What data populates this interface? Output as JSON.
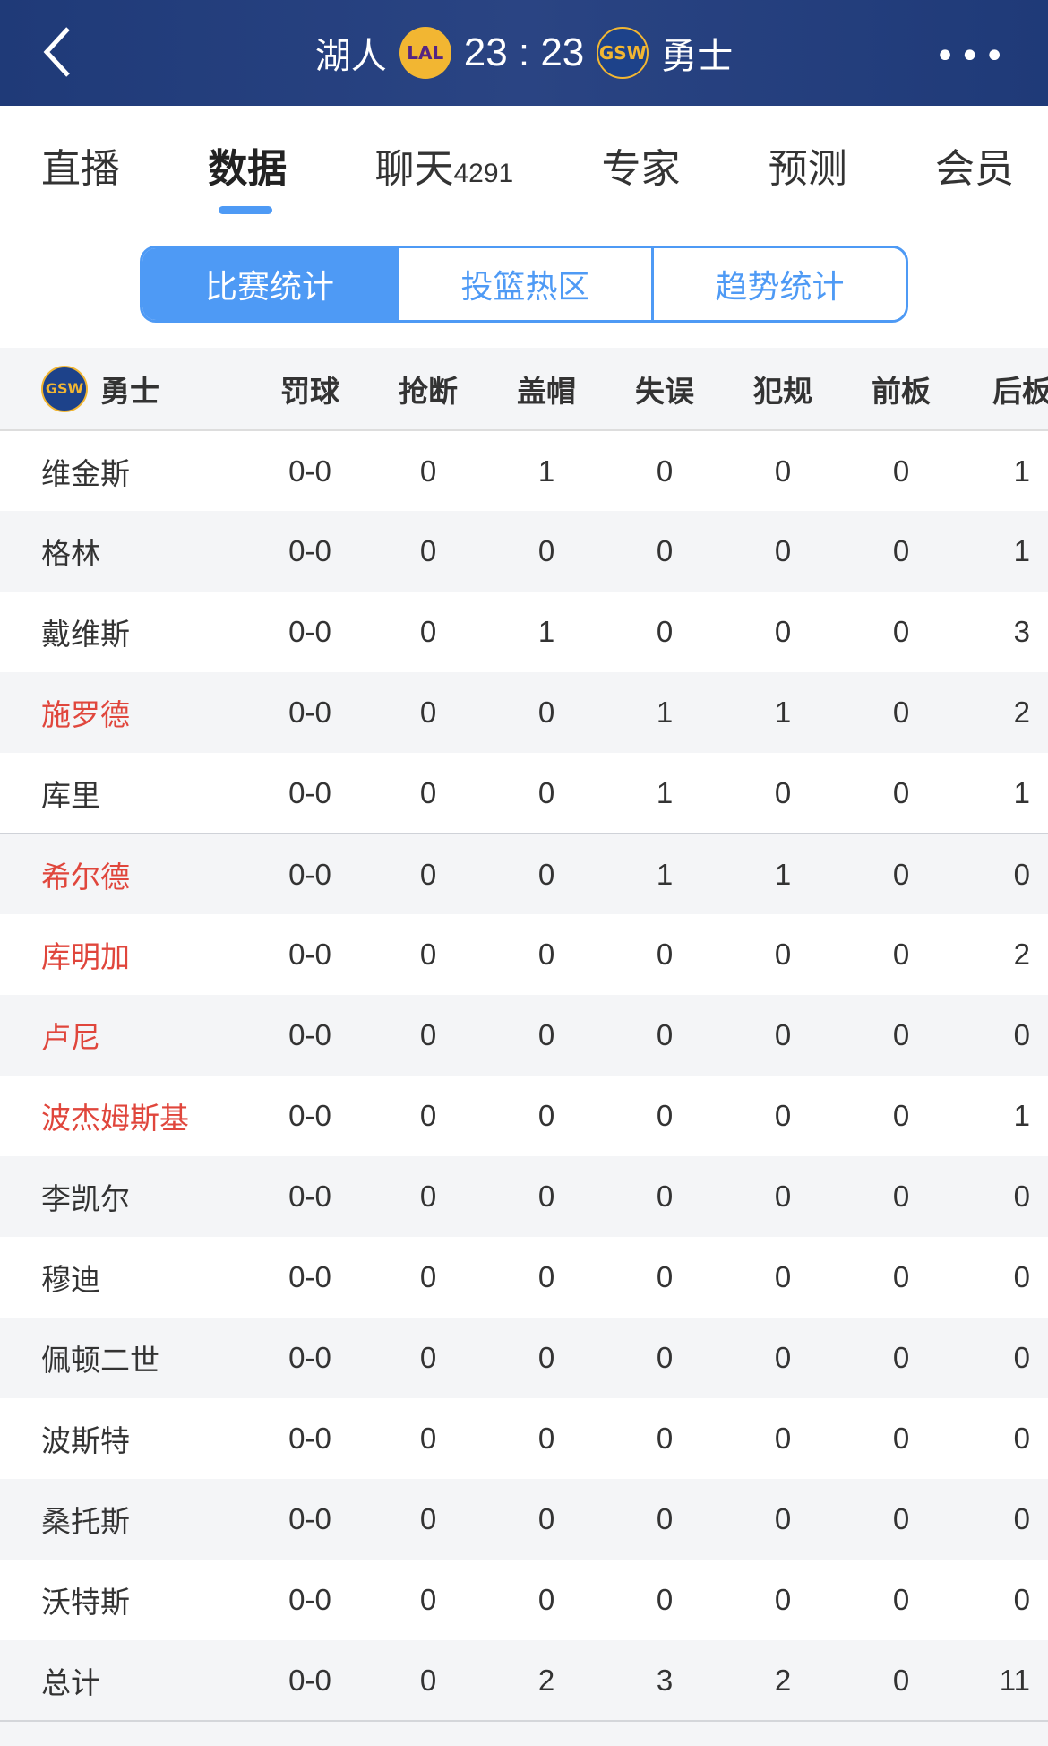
{
  "header": {
    "home_team": "湖人",
    "home_logo": "LAL",
    "score": "23 : 23",
    "away_logo": "GSW",
    "away_team": "勇士",
    "back_icon": "chevron-left-icon",
    "more_icon": "more-dots-icon"
  },
  "nav": {
    "tabs": [
      {
        "label": "直播"
      },
      {
        "label": "数据",
        "active": true
      },
      {
        "label": "聊天",
        "count": "4291"
      },
      {
        "label": "专家"
      },
      {
        "label": "预测"
      },
      {
        "label": "会员"
      }
    ]
  },
  "subtabs": [
    {
      "label": "比赛统计",
      "active": true
    },
    {
      "label": "投篮热区"
    },
    {
      "label": "趋势统计"
    }
  ],
  "colors": {
    "accent": "#4e9af5",
    "header_bg": "#233d7d",
    "highlight_name": "#e0463c"
  },
  "table": {
    "team_logo": "GSW",
    "team": "勇士",
    "columns": [
      "罚球",
      "抢断",
      "盖帽",
      "失误",
      "犯规",
      "前板",
      "后板"
    ],
    "rows": [
      {
        "name": "维金斯",
        "highlight": false,
        "values": [
          "0-0",
          "0",
          "1",
          "0",
          "0",
          "0",
          "1"
        ]
      },
      {
        "name": "格林",
        "highlight": false,
        "values": [
          "0-0",
          "0",
          "0",
          "0",
          "0",
          "0",
          "1"
        ]
      },
      {
        "name": "戴维斯",
        "highlight": false,
        "values": [
          "0-0",
          "0",
          "1",
          "0",
          "0",
          "0",
          "3"
        ]
      },
      {
        "name": "施罗德",
        "highlight": true,
        "values": [
          "0-0",
          "0",
          "0",
          "1",
          "1",
          "0",
          "2"
        ]
      },
      {
        "name": "库里",
        "highlight": false,
        "values": [
          "0-0",
          "0",
          "0",
          "1",
          "0",
          "0",
          "1"
        ]
      },
      {
        "name": "希尔德",
        "highlight": true,
        "values": [
          "0-0",
          "0",
          "0",
          "1",
          "1",
          "0",
          "0"
        ]
      },
      {
        "name": "库明加",
        "highlight": true,
        "values": [
          "0-0",
          "0",
          "0",
          "0",
          "0",
          "0",
          "2"
        ]
      },
      {
        "name": "卢尼",
        "highlight": true,
        "values": [
          "0-0",
          "0",
          "0",
          "0",
          "0",
          "0",
          "0"
        ]
      },
      {
        "name": "波杰姆斯基",
        "highlight": true,
        "values": [
          "0-0",
          "0",
          "0",
          "0",
          "0",
          "0",
          "1"
        ]
      },
      {
        "name": "李凯尔",
        "highlight": false,
        "values": [
          "0-0",
          "0",
          "0",
          "0",
          "0",
          "0",
          "0"
        ]
      },
      {
        "name": "穆迪",
        "highlight": false,
        "values": [
          "0-0",
          "0",
          "0",
          "0",
          "0",
          "0",
          "0"
        ]
      },
      {
        "name": "佩顿二世",
        "highlight": false,
        "values": [
          "0-0",
          "0",
          "0",
          "0",
          "0",
          "0",
          "0"
        ]
      },
      {
        "name": "波斯特",
        "highlight": false,
        "values": [
          "0-0",
          "0",
          "0",
          "0",
          "0",
          "0",
          "0"
        ]
      },
      {
        "name": "桑托斯",
        "highlight": false,
        "values": [
          "0-0",
          "0",
          "0",
          "0",
          "0",
          "0",
          "0"
        ]
      },
      {
        "name": "沃特斯",
        "highlight": false,
        "values": [
          "0-0",
          "0",
          "0",
          "0",
          "0",
          "0",
          "0"
        ]
      }
    ],
    "total": {
      "name": "总计",
      "values": [
        "0-0",
        "0",
        "2",
        "3",
        "2",
        "0",
        "11"
      ]
    }
  }
}
